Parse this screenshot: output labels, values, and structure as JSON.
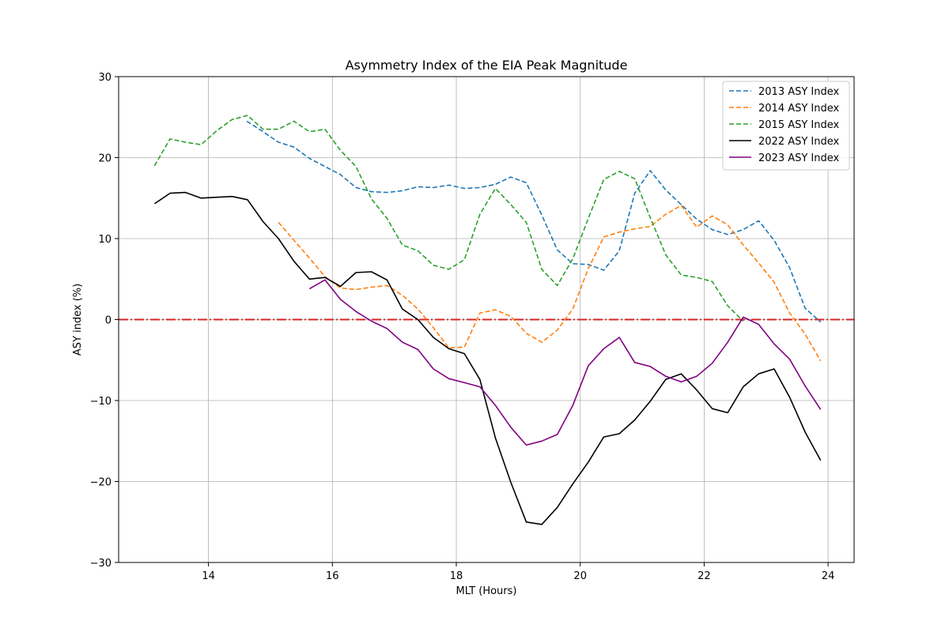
{
  "chart_data": {
    "type": "line",
    "title": "Asymmetry Index of the EIA Peak Magnitude",
    "xlabel": "MLT (Hours)",
    "ylabel": "ASY index (%)",
    "xlim": [
      12.55,
      24.42
    ],
    "ylim": [
      -30,
      30
    ],
    "xticks": [
      14,
      16,
      18,
      20,
      22,
      24
    ],
    "yticks": [
      -30,
      -20,
      -10,
      0,
      10,
      20,
      30
    ],
    "xtick_labels": [
      "14",
      "16",
      "18",
      "20",
      "22",
      "24"
    ],
    "ytick_labels": [
      "−30",
      "−20",
      "−10",
      "0",
      "10",
      "20",
      "30"
    ],
    "grid": true,
    "legend_position": "top-right",
    "reference_line": {
      "y": 0,
      "color": "#d62728",
      "style": "dash-dot"
    },
    "series": [
      {
        "name": "2013 ASY Index",
        "color": "#1f77b4",
        "style": "dashed",
        "x": [
          14.62,
          14.88,
          15.13,
          15.38,
          15.63,
          15.88,
          16.13,
          16.38,
          16.63,
          16.88,
          17.13,
          17.38,
          17.63,
          17.88,
          18.13,
          18.38,
          18.63,
          18.88,
          19.13,
          19.38,
          19.63,
          19.88,
          20.13,
          20.38,
          20.63,
          20.88,
          21.13,
          21.38,
          21.63,
          21.88,
          22.13,
          22.38,
          22.63,
          22.88,
          23.13,
          23.38,
          23.63,
          23.88
        ],
        "y": [
          24.5,
          23.2,
          21.9,
          21.3,
          19.9,
          18.9,
          17.9,
          16.3,
          15.8,
          15.7,
          15.9,
          16.4,
          16.3,
          16.6,
          16.2,
          16.3,
          16.7,
          17.6,
          16.9,
          12.9,
          8.6,
          6.9,
          6.8,
          6.1,
          8.5,
          15.6,
          18.4,
          16.0,
          14.2,
          12.4,
          11.1,
          10.5,
          11.1,
          12.2,
          9.8,
          6.4,
          1.4,
          -0.3
        ]
      },
      {
        "name": "2014 ASY Index",
        "color": "#ff7f0e",
        "style": "dashed",
        "x": [
          15.13,
          15.38,
          15.63,
          15.88,
          16.13,
          16.38,
          16.63,
          16.88,
          17.13,
          17.38,
          17.63,
          17.88,
          18.13,
          18.38,
          18.63,
          18.88,
          19.13,
          19.38,
          19.63,
          19.88,
          20.13,
          20.38,
          20.63,
          20.88,
          21.13,
          21.38,
          21.63,
          21.88,
          22.13,
          22.38,
          22.63,
          22.88,
          23.13,
          23.38,
          23.63,
          23.88
        ],
        "y": [
          12.0,
          9.8,
          7.6,
          5.3,
          3.9,
          3.7,
          4.0,
          4.2,
          3.0,
          1.3,
          -1.0,
          -3.5,
          -3.4,
          0.8,
          1.2,
          0.4,
          -1.7,
          -2.8,
          -1.3,
          1.3,
          6.3,
          10.2,
          10.8,
          11.2,
          11.5,
          13.0,
          14.1,
          11.4,
          12.8,
          11.7,
          9.2,
          7.0,
          4.6,
          0.8,
          -1.8,
          -5.1
        ]
      },
      {
        "name": "2015 ASY Index",
        "color": "#2ca02c",
        "style": "dashed",
        "x": [
          13.13,
          13.38,
          13.63,
          13.88,
          14.13,
          14.38,
          14.63,
          14.88,
          15.13,
          15.38,
          15.63,
          15.88,
          16.13,
          16.38,
          16.63,
          16.88,
          17.13,
          17.38,
          17.63,
          17.88,
          18.13,
          18.38,
          18.63,
          18.88,
          19.13,
          19.38,
          19.63,
          19.88,
          20.13,
          20.38,
          20.63,
          20.88,
          21.13,
          21.38,
          21.63,
          21.88,
          22.13,
          22.38,
          22.63
        ],
        "y": [
          19.0,
          22.3,
          21.9,
          21.6,
          23.3,
          24.7,
          25.2,
          23.5,
          23.5,
          24.5,
          23.2,
          23.5,
          20.9,
          18.9,
          14.9,
          12.5,
          9.2,
          8.5,
          6.7,
          6.2,
          7.4,
          13.0,
          16.2,
          14.2,
          12.0,
          6.2,
          4.2,
          7.5,
          12.5,
          17.3,
          18.3,
          17.4,
          12.6,
          8.0,
          5.5,
          5.2,
          4.7,
          1.7,
          -0.2
        ]
      },
      {
        "name": "2022 ASY Index",
        "color": "#000000",
        "style": "solid",
        "x": [
          13.13,
          13.38,
          13.63,
          13.88,
          14.13,
          14.38,
          14.63,
          14.88,
          15.13,
          15.38,
          15.63,
          15.88,
          16.13,
          16.38,
          16.63,
          16.88,
          17.13,
          17.38,
          17.63,
          17.88,
          18.13,
          18.38,
          18.63,
          18.88,
          19.13,
          19.38,
          19.63,
          19.88,
          20.13,
          20.38,
          20.63,
          20.88,
          21.13,
          21.38,
          21.63,
          21.88,
          22.13,
          22.38,
          22.63,
          22.88,
          23.13,
          23.38,
          23.63,
          23.88
        ],
        "y": [
          14.3,
          15.6,
          15.7,
          15.0,
          15.1,
          15.2,
          14.8,
          12.1,
          10.0,
          7.2,
          5.0,
          5.2,
          4.1,
          5.8,
          5.9,
          4.9,
          1.3,
          0.0,
          -2.2,
          -3.6,
          -4.2,
          -7.4,
          -14.6,
          -20.1,
          -25.0,
          -25.3,
          -23.2,
          -20.3,
          -17.6,
          -14.5,
          -14.1,
          -12.4,
          -10.1,
          -7.4,
          -6.7,
          -8.7,
          -11.0,
          -11.5,
          -8.3,
          -6.7,
          -6.1,
          -9.6,
          -13.9,
          -17.4
        ]
      },
      {
        "name": "2023 ASY Index",
        "color": "#800080",
        "style": "solid",
        "x": [
          15.63,
          15.88,
          16.13,
          16.38,
          16.63,
          16.88,
          17.13,
          17.38,
          17.63,
          17.88,
          18.13,
          18.38,
          18.63,
          18.88,
          19.13,
          19.38,
          19.63,
          19.88,
          20.13,
          20.38,
          20.63,
          20.88,
          21.13,
          21.38,
          21.63,
          21.88,
          22.13,
          22.38,
          22.63,
          22.88,
          23.13,
          23.38,
          23.63,
          23.88
        ],
        "y": [
          3.8,
          4.9,
          2.5,
          1.0,
          -0.2,
          -1.1,
          -2.8,
          -3.7,
          -6.1,
          -7.3,
          -7.8,
          -8.3,
          -10.6,
          -13.3,
          -15.5,
          -15.0,
          -14.2,
          -10.6,
          -5.7,
          -3.6,
          -2.2,
          -5.3,
          -5.8,
          -7.0,
          -7.7,
          -7.0,
          -5.4,
          -2.8,
          0.3,
          -0.6,
          -3.0,
          -4.9,
          -8.2,
          -11.1
        ]
      }
    ]
  }
}
